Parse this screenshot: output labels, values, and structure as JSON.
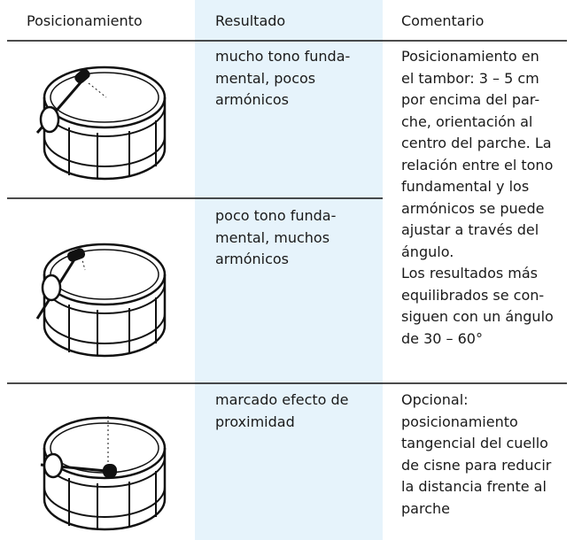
{
  "table": {
    "headers": [
      "Posicionamiento",
      "Resultado",
      "Comentario"
    ],
    "rows": [
      {
        "result": [
          "mucho tono funda-",
          "mental, pocos",
          "armónicos"
        ],
        "comment": [
          "Posicionamiento en",
          "el tambor: 3 – 5 cm",
          "por encima del par-",
          "che, orientación al",
          "centro del parche. La",
          "relación entre el tono",
          "fundamental y los",
          "armónicos se puede",
          "ajustar a través del",
          "ángulo.",
          "Los resultados más",
          "equilibrados se con-",
          "siguen con un ángulo",
          "de 30 – 60°"
        ]
      },
      {
        "result": [
          "poco tono funda-",
          "mental, muchos",
          "armónicos"
        ]
      },
      {
        "result": [
          "marcado efecto de",
          "proximidad"
        ],
        "comment": [
          "Opcional:",
          "posicionamiento",
          "tangencial del cuello",
          "de cisne para reducir",
          "la distancia frente al",
          "parche"
        ]
      }
    ]
  }
}
